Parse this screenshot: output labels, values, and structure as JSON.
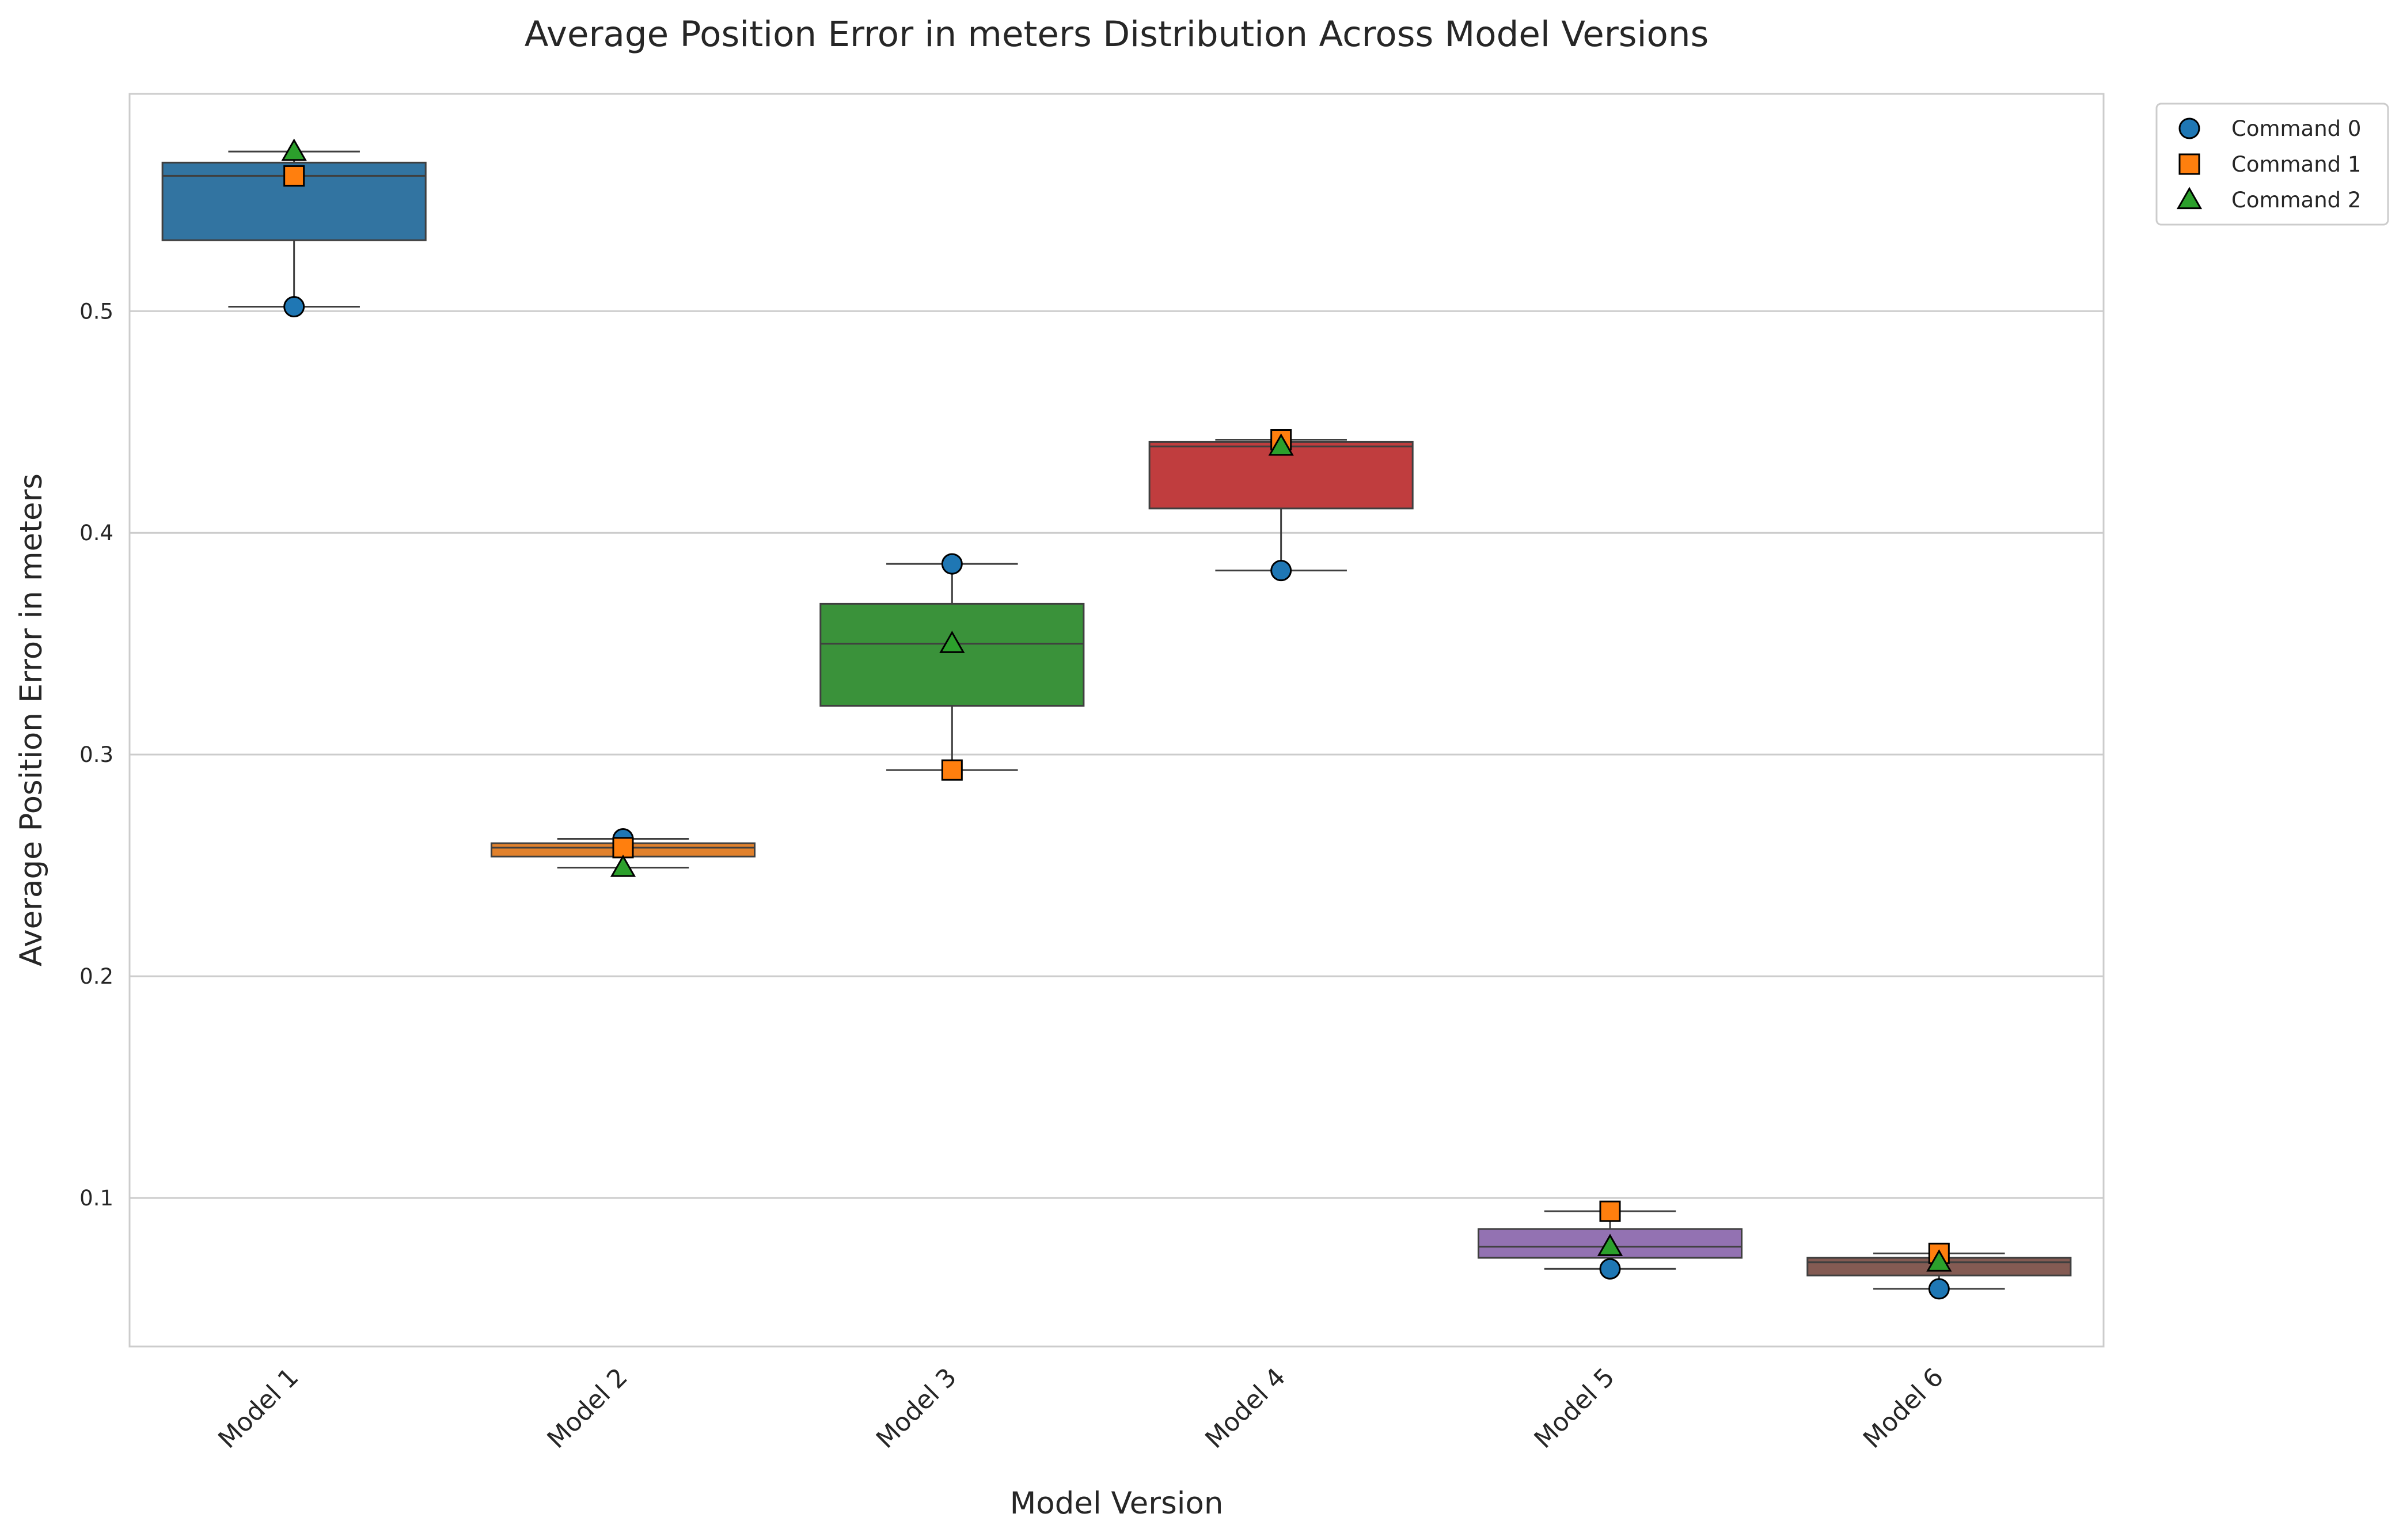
{
  "chart_data": {
    "type": "box",
    "title": "Average Position Error in meters Distribution Across Model Versions",
    "xlabel": "Model Version",
    "ylabel": "Average Position Error in meters",
    "categories": [
      "Model 1",
      "Model 2",
      "Model 3",
      "Model 4",
      "Model 5",
      "Model 6"
    ],
    "ylim": [
      0.033,
      0.598
    ],
    "yticks": [
      0.1,
      0.2,
      0.3,
      0.4,
      0.5
    ],
    "ytick_labels": [
      "0.1",
      "0.2",
      "0.3",
      "0.4",
      "0.5"
    ],
    "grid": "horizontal",
    "legend_placement": "outside top-right",
    "box_colors": [
      "#3274a1",
      "#e1812c",
      "#3a923a",
      "#c03d3e",
      "#9372b2",
      "#845b53"
    ],
    "boxes": [
      {
        "category": "Model 1",
        "min": 0.502,
        "q1": 0.532,
        "median": 0.561,
        "q3": 0.567,
        "max": 0.572
      },
      {
        "category": "Model 2",
        "min": 0.249,
        "q1": 0.254,
        "median": 0.258,
        "q3": 0.26,
        "max": 0.262
      },
      {
        "category": "Model 3",
        "min": 0.293,
        "q1": 0.322,
        "median": 0.35,
        "q3": 0.368,
        "max": 0.386
      },
      {
        "category": "Model 4",
        "min": 0.383,
        "q1": 0.411,
        "median": 0.439,
        "q3": 0.441,
        "max": 0.442
      },
      {
        "category": "Model 5",
        "min": 0.068,
        "q1": 0.073,
        "median": 0.078,
        "q3": 0.086,
        "max": 0.094
      },
      {
        "category": "Model 6",
        "min": 0.059,
        "q1": 0.065,
        "median": 0.071,
        "q3": 0.073,
        "max": 0.075
      }
    ],
    "series": [
      {
        "name": "Command 0",
        "marker": "circle",
        "color": "#1f77b4",
        "values": [
          0.502,
          0.262,
          0.386,
          0.383,
          0.068,
          0.059
        ]
      },
      {
        "name": "Command 1",
        "marker": "square",
        "color": "#ff7f0e",
        "values": [
          0.561,
          0.258,
          0.293,
          0.442,
          0.094,
          0.075
        ]
      },
      {
        "name": "Command 2",
        "marker": "triangle",
        "color": "#2ca02c",
        "values": [
          0.572,
          0.249,
          0.35,
          0.439,
          0.078,
          0.071
        ]
      }
    ]
  }
}
